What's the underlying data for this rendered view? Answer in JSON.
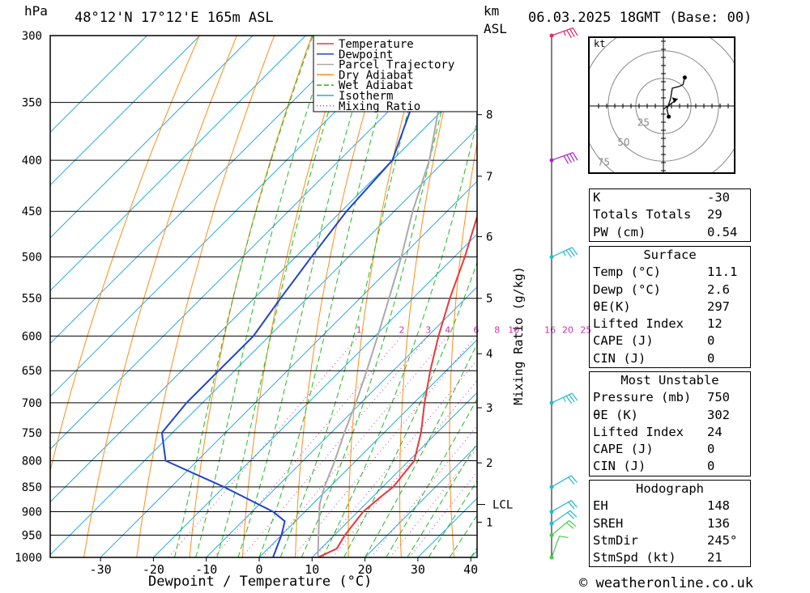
{
  "header": {
    "hpa_label": "hPa",
    "location": "48°12'N 17°12'E 165m ASL",
    "km_label": "km",
    "asl_label": "ASL",
    "datetime": "06.03.2025 18GMT (Base: 00)"
  },
  "footer": {
    "credit": "© weatheronline.co.uk"
  },
  "chart_data": {
    "type": "skewt",
    "xlabel": "Dewpoint / Temperature (°C)",
    "ylabel_right": "Mixing Ratio (g/kg)",
    "pressure_levels": [
      300,
      350,
      400,
      450,
      500,
      550,
      600,
      650,
      700,
      750,
      800,
      850,
      900,
      950,
      1000
    ],
    "temp_ticks": [
      -30,
      -20,
      -10,
      0,
      10,
      20,
      30,
      40
    ],
    "xlim_at_1000hPa": [
      -39,
      40
    ],
    "ylim_hPa": [
      1000,
      300
    ],
    "height_km_ticks": [
      {
        "km": "1",
        "p": 922
      },
      {
        "km": "2",
        "p": 804
      },
      {
        "km": "3",
        "p": 708
      },
      {
        "km": "4",
        "p": 625
      },
      {
        "km": "5",
        "p": 550
      },
      {
        "km": "6",
        "p": 477
      },
      {
        "km": "7",
        "p": 415
      },
      {
        "km": "8",
        "p": 360
      }
    ],
    "lcl": {
      "label": "LCL",
      "p": 885
    },
    "mixing_ratio_labels": [
      "1",
      "2",
      "3",
      "4",
      "6",
      "8",
      "10",
      "16",
      "20",
      "25"
    ],
    "legend": [
      "Temperature",
      "Dewpoint",
      "Parcel Trajectory",
      "Dry Adiabat",
      "Wet Adiabat",
      "Isotherm",
      "Mixing Ratio"
    ],
    "colors": {
      "temperature": "#e8383d",
      "dewpoint": "#2244cc",
      "parcel": "#aaaaaa",
      "dry_adiabat": "#ff8c1a",
      "wet_adiabat": "#22bb22",
      "isotherm": "#2aa8e0",
      "mixing_ratio": "#cc33aa",
      "wind_low": "#44cc44",
      "wind_mid": "#22bbcc",
      "wind_400": "#aa22cc",
      "wind_300": "#ee2266"
    },
    "series": [
      {
        "name": "Temperature",
        "points": [
          [
            1000,
            11.1
          ],
          [
            980,
            13
          ],
          [
            950,
            12
          ],
          [
            900,
            11
          ],
          [
            870,
            11.5
          ],
          [
            850,
            12
          ],
          [
            800,
            11
          ],
          [
            750,
            7
          ],
          [
            700,
            2
          ],
          [
            650,
            -3
          ],
          [
            600,
            -8
          ],
          [
            550,
            -13
          ],
          [
            500,
            -18
          ],
          [
            450,
            -24
          ],
          [
            400,
            -31
          ],
          [
            350,
            -38
          ],
          [
            300,
            -45
          ]
        ]
      },
      {
        "name": "Dewpoint",
        "points": [
          [
            1000,
            2.6
          ],
          [
            950,
            0
          ],
          [
            920,
            -2
          ],
          [
            900,
            -6
          ],
          [
            850,
            -20
          ],
          [
            800,
            -36
          ],
          [
            750,
            -42
          ],
          [
            700,
            -43
          ],
          [
            650,
            -43
          ],
          [
            600,
            -43
          ],
          [
            550,
            -45
          ],
          [
            500,
            -47
          ],
          [
            450,
            -49
          ],
          [
            400,
            -50
          ],
          [
            350,
            -57
          ],
          [
            300,
            -59
          ]
        ]
      },
      {
        "name": "Parcel Trajectory",
        "points": [
          [
            1000,
            11.1
          ],
          [
            950,
            7
          ],
          [
            885,
            1.4
          ],
          [
            850,
            -1
          ],
          [
            800,
            -4
          ],
          [
            750,
            -7.5
          ],
          [
            700,
            -11
          ],
          [
            650,
            -15
          ],
          [
            600,
            -19.5
          ],
          [
            550,
            -24.5
          ],
          [
            500,
            -30
          ],
          [
            450,
            -36.5
          ],
          [
            400,
            -43
          ],
          [
            350,
            -52
          ],
          [
            300,
            -61
          ]
        ]
      }
    ],
    "surface": {
      "temp_c": 11.1,
      "dewp_c": 2.6
    },
    "wind_barbs": [
      {
        "p": 1000,
        "dir": 200,
        "kt": 10
      },
      {
        "p": 950,
        "dir": 230,
        "kt": 20
      },
      {
        "p": 925,
        "dir": 235,
        "kt": 20
      },
      {
        "p": 900,
        "dir": 240,
        "kt": 20
      },
      {
        "p": 850,
        "dir": 240,
        "kt": 20
      },
      {
        "p": 700,
        "dir": 245,
        "kt": 25
      },
      {
        "p": 500,
        "dir": 245,
        "kt": 25
      },
      {
        "p": 400,
        "dir": 250,
        "kt": 40
      },
      {
        "p": 300,
        "dir": 250,
        "kt": 25
      }
    ]
  },
  "hodograph": {
    "unit": "kt",
    "rings": [
      "25",
      "50",
      "75"
    ],
    "trace_kt": [
      [
        3,
        -6
      ],
      [
        2,
        -2
      ],
      [
        4,
        4
      ],
      [
        5,
        10
      ],
      [
        9,
        11
      ],
      [
        11,
        12
      ],
      [
        12,
        16
      ]
    ],
    "storm_motion_kt": [
      8,
      4
    ]
  },
  "indices": [
    {
      "key": "K",
      "value": "-30"
    },
    {
      "key": "Totals Totals",
      "value": "29"
    },
    {
      "key": "PW (cm)",
      "value": "0.54"
    }
  ],
  "surface": {
    "title": "Surface",
    "rows": [
      {
        "key": "Temp (°C)",
        "value": "11.1"
      },
      {
        "key": "Dewp (°C)",
        "value": "2.6"
      },
      {
        "key": "θE(K)",
        "value": "297"
      },
      {
        "key": "Lifted Index",
        "value": "12"
      },
      {
        "key": "CAPE (J)",
        "value": "0"
      },
      {
        "key": "CIN (J)",
        "value": "0"
      }
    ]
  },
  "most_unstable": {
    "title": "Most Unstable",
    "rows": [
      {
        "key": "Pressure (mb)",
        "value": "750"
      },
      {
        "key": "θE (K)",
        "value": "302"
      },
      {
        "key": "Lifted Index",
        "value": "24"
      },
      {
        "key": "CAPE (J)",
        "value": "0"
      },
      {
        "key": "CIN (J)",
        "value": "0"
      }
    ]
  },
  "hodograph_stats": {
    "title": "Hodograph",
    "rows": [
      {
        "key": "EH",
        "value": "148"
      },
      {
        "key": "SREH",
        "value": "136"
      },
      {
        "key": "StmDir",
        "value": "245°"
      },
      {
        "key": "StmSpd (kt)",
        "value": "21"
      }
    ]
  }
}
